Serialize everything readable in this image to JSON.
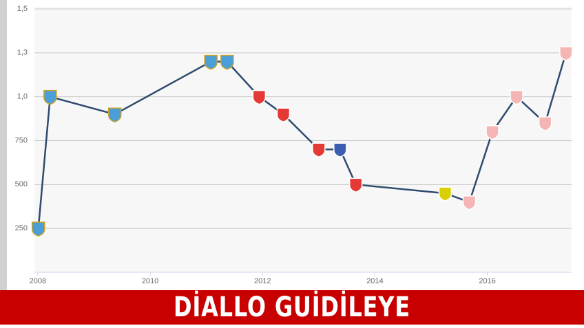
{
  "chart_data": {
    "type": "line",
    "title": "DİALLO GUİDİLEYE",
    "series": [
      {
        "color": "#2f4b6e",
        "x": [
          2008.01,
          2008.22,
          2009.37,
          2011.08,
          2011.37,
          2011.94,
          2012.37,
          2013.0,
          2013.38,
          2013.66,
          2015.25,
          2015.68,
          2016.09,
          2016.52,
          2017.03,
          2017.4
        ],
        "values": [
          250,
          1000,
          900,
          1200,
          1200,
          1000,
          900,
          700,
          700,
          500,
          450,
          400,
          800,
          1000,
          850,
          1250
        ],
        "marker_colors": [
          "#4a9fd8",
          "#4a9fd8",
          "#4a9fd8",
          "#4a9fd8",
          "#4a9fd8",
          "#e53935",
          "#e53935",
          "#e53935",
          "#3a5fb0",
          "#e53935",
          "#d8d000",
          "#f5b5b5",
          "#f5b5b5",
          "#f5b5b5",
          "#f5b5b5",
          "#f5b5b5"
        ]
      }
    ],
    "xlim": [
      2007.94,
      2017.5
    ],
    "xticks": [
      2008,
      2010,
      2012,
      2014,
      2016
    ],
    "ylim": [
      0,
      1500
    ],
    "yticks": [
      250,
      500,
      750,
      {
        "value": 1000,
        "label": "1,0"
      },
      {
        "value": 1250,
        "label": "1,3"
      },
      {
        "value": 1500,
        "label": "1,5"
      }
    ],
    "grid": true
  }
}
